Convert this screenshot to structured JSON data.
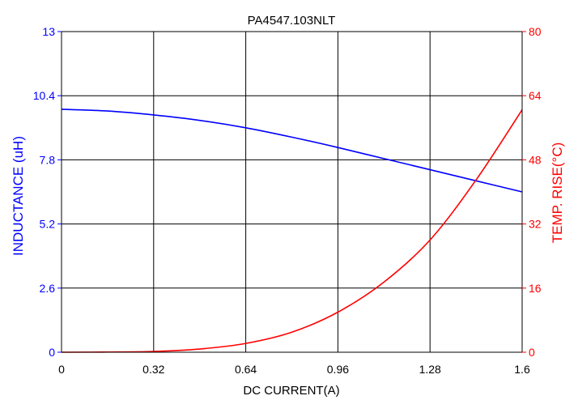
{
  "chart_data": {
    "type": "line",
    "title": "PA4547.103NLT",
    "xlabel": "DC CURRENT(A)",
    "ylabel_left": "INDUCTANCE (uH)",
    "ylabel_right": "TEMP. RISE(°C)",
    "xlim": [
      0,
      1.6
    ],
    "ylim_left": [
      0,
      13
    ],
    "ylim_right": [
      0,
      80
    ],
    "x_ticks": [
      "0",
      "0.32",
      "0.64",
      "0.96",
      "1.28",
      "1.6"
    ],
    "y_ticks_left": [
      "0",
      "2.6",
      "5.2",
      "7.8",
      "10.4",
      "13"
    ],
    "y_ticks_right": [
      "0",
      "16",
      "32",
      "48",
      "64",
      "80"
    ],
    "grid": true,
    "colors": {
      "axes": "#000000",
      "inductance": "#0000ff",
      "temp_rise": "#ff0000",
      "grid": "#000000"
    },
    "x": [
      0,
      0.16,
      0.32,
      0.48,
      0.64,
      0.8,
      0.96,
      1.12,
      1.28,
      1.44,
      1.6
    ],
    "series": [
      {
        "name": "INDUCTANCE (uH)",
        "axis": "left",
        "color": "#0000ff",
        "values": [
          9.85,
          9.78,
          9.62,
          9.4,
          9.1,
          8.72,
          8.3,
          7.85,
          7.4,
          6.95,
          6.5
        ]
      },
      {
        "name": "TEMP. RISE(°C)",
        "axis": "right",
        "color": "#ff0000",
        "values": [
          0,
          0.05,
          0.2,
          0.8,
          2.2,
          5,
          10,
          17.5,
          28,
          43,
          60.5
        ]
      }
    ]
  }
}
